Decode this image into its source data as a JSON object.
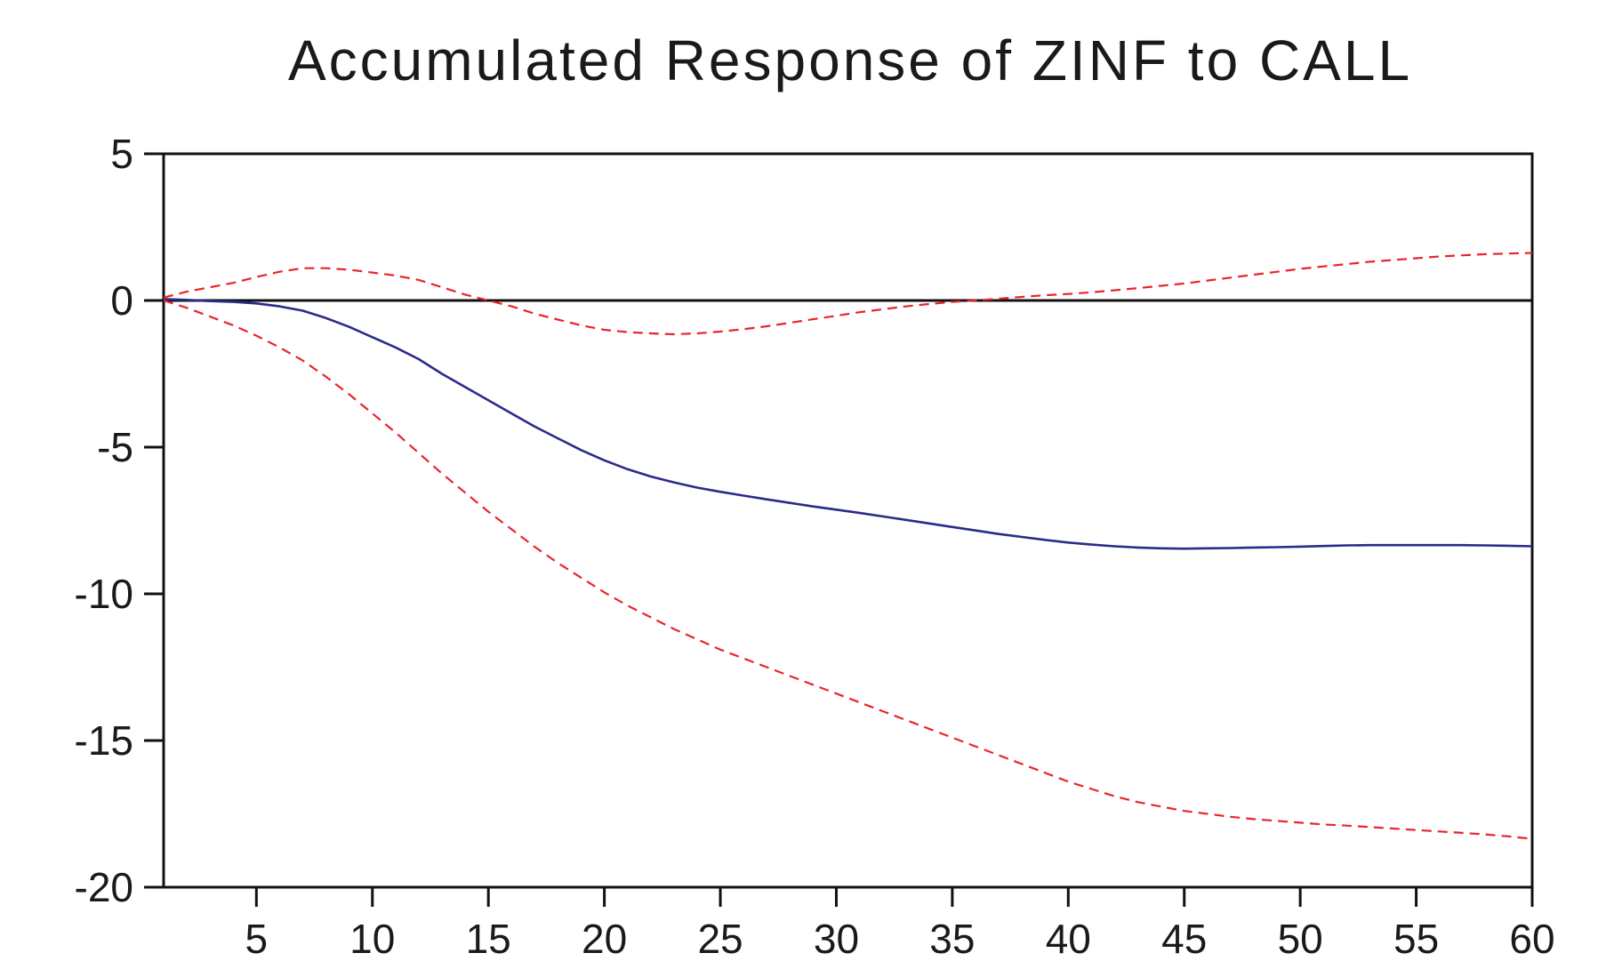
{
  "chart_data": {
    "type": "line",
    "title": "Accumulated Response of ZINF to CALL",
    "xlabel": "",
    "ylabel": "",
    "xlim": [
      1,
      60
    ],
    "ylim": [
      -20,
      5
    ],
    "x_ticks": [
      5,
      10,
      15,
      20,
      25,
      30,
      35,
      40,
      45,
      50,
      55,
      60
    ],
    "y_ticks": [
      5,
      0,
      -5,
      -10,
      -15,
      -20
    ],
    "zero_line": true,
    "grid": false,
    "legend": "none",
    "colors": {
      "response": "#2b2b8a",
      "band": "#e8262b",
      "axis": "#111111"
    },
    "series": [
      {
        "style": "solid",
        "color": "#2b2b8a",
        "x": [
          1,
          2,
          3,
          4,
          5,
          6,
          7,
          8,
          9,
          10,
          11,
          12,
          13,
          14,
          15,
          16,
          17,
          18,
          19,
          20,
          21,
          22,
          23,
          24,
          25,
          26,
          27,
          28,
          29,
          30,
          31,
          32,
          33,
          34,
          35,
          36,
          37,
          38,
          39,
          40,
          41,
          42,
          43,
          44,
          45,
          46,
          47,
          48,
          49,
          50,
          51,
          52,
          53,
          54,
          55,
          56,
          57,
          58,
          59,
          60
        ],
        "values": [
          0.05,
          0.02,
          -0.02,
          -0.05,
          -0.1,
          -0.2,
          -0.35,
          -0.6,
          -0.9,
          -1.25,
          -1.6,
          -2.0,
          -2.5,
          -2.95,
          -3.4,
          -3.85,
          -4.3,
          -4.7,
          -5.1,
          -5.45,
          -5.75,
          -6.0,
          -6.2,
          -6.38,
          -6.52,
          -6.65,
          -6.78,
          -6.9,
          -7.02,
          -7.13,
          -7.24,
          -7.36,
          -7.48,
          -7.6,
          -7.72,
          -7.84,
          -7.96,
          -8.06,
          -8.16,
          -8.25,
          -8.32,
          -8.38,
          -8.42,
          -8.45,
          -8.46,
          -8.45,
          -8.44,
          -8.42,
          -8.41,
          -8.39,
          -8.37,
          -8.35,
          -8.34,
          -8.34,
          -8.34,
          -8.34,
          -8.34,
          -8.35,
          -8.36,
          -8.38
        ]
      },
      {
        "style": "dashed",
        "color": "#e8262b",
        "x": [
          1,
          2,
          3,
          4,
          5,
          6,
          7,
          8,
          9,
          10,
          11,
          12,
          13,
          14,
          15,
          16,
          17,
          18,
          19,
          20,
          21,
          22,
          23,
          24,
          25,
          26,
          27,
          28,
          29,
          30,
          31,
          32,
          33,
          34,
          35,
          36,
          37,
          38,
          39,
          40,
          41,
          42,
          43,
          44,
          45,
          46,
          47,
          48,
          49,
          50,
          51,
          52,
          53,
          54,
          55,
          56,
          57,
          58,
          59,
          60
        ],
        "values": [
          0.1,
          0.3,
          0.45,
          0.6,
          0.8,
          0.98,
          1.1,
          1.1,
          1.05,
          0.95,
          0.85,
          0.7,
          0.45,
          0.2,
          0.0,
          -0.2,
          -0.45,
          -0.65,
          -0.85,
          -1.0,
          -1.08,
          -1.12,
          -1.15,
          -1.12,
          -1.06,
          -0.98,
          -0.88,
          -0.76,
          -0.64,
          -0.52,
          -0.4,
          -0.3,
          -0.2,
          -0.12,
          -0.05,
          0.0,
          0.06,
          0.12,
          0.18,
          0.22,
          0.28,
          0.35,
          0.42,
          0.5,
          0.58,
          0.68,
          0.78,
          0.88,
          0.98,
          1.08,
          1.16,
          1.24,
          1.32,
          1.38,
          1.44,
          1.5,
          1.54,
          1.58,
          1.6,
          1.62
        ]
      },
      {
        "style": "dashed",
        "color": "#e8262b",
        "x": [
          1,
          2,
          3,
          4,
          5,
          6,
          7,
          8,
          9,
          10,
          11,
          12,
          13,
          14,
          15,
          16,
          17,
          18,
          19,
          20,
          21,
          22,
          23,
          24,
          25,
          26,
          27,
          28,
          29,
          30,
          31,
          32,
          33,
          34,
          35,
          36,
          37,
          38,
          39,
          40,
          41,
          42,
          43,
          44,
          45,
          46,
          47,
          48,
          49,
          50,
          51,
          52,
          53,
          54,
          55,
          56,
          57,
          58,
          59,
          60
        ],
        "values": [
          0.0,
          -0.25,
          -0.55,
          -0.85,
          -1.2,
          -1.6,
          -2.05,
          -2.6,
          -3.2,
          -3.85,
          -4.5,
          -5.2,
          -5.9,
          -6.55,
          -7.2,
          -7.8,
          -8.4,
          -8.95,
          -9.45,
          -9.95,
          -10.4,
          -10.8,
          -11.2,
          -11.55,
          -11.9,
          -12.2,
          -12.5,
          -12.8,
          -13.1,
          -13.4,
          -13.7,
          -14.0,
          -14.3,
          -14.6,
          -14.9,
          -15.2,
          -15.5,
          -15.8,
          -16.1,
          -16.4,
          -16.65,
          -16.9,
          -17.1,
          -17.25,
          -17.4,
          -17.5,
          -17.6,
          -17.68,
          -17.74,
          -17.8,
          -17.86,
          -17.9,
          -17.95,
          -18.0,
          -18.05,
          -18.1,
          -18.15,
          -18.2,
          -18.27,
          -18.35
        ]
      }
    ]
  }
}
